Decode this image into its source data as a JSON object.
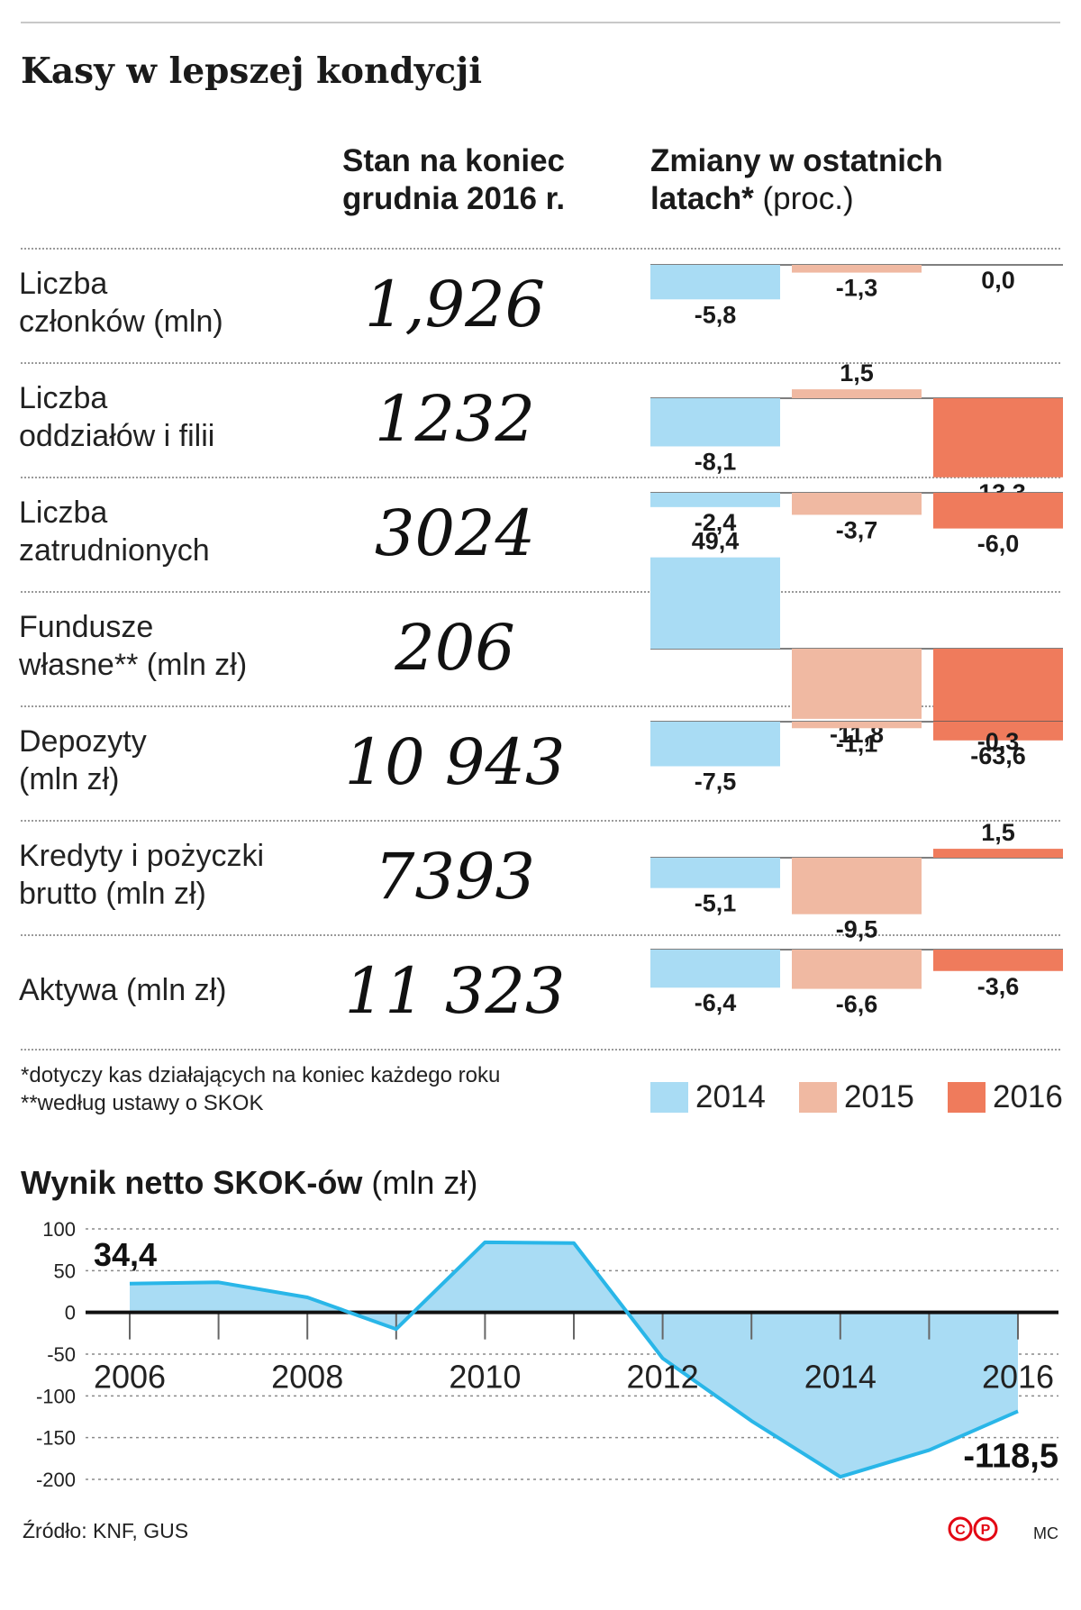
{
  "title": "Kasy w lepszej kondycji",
  "header": {
    "col1_line1": "Stan na koniec",
    "col1_line2": "grudnia 2016 r.",
    "col2_line1": "Zmiany w ostatnich",
    "col2_line2_bold": "latach*",
    "col2_line2_normal": " (proc.)"
  },
  "rows": [
    {
      "label1": "Liczba",
      "label2": "członków (mln)",
      "value": "1,926",
      "changes": [
        -5.8,
        -1.3,
        0.0
      ],
      "labels": [
        "-5,8",
        "-1,3",
        "0,0"
      ]
    },
    {
      "label1": "Liczba",
      "label2": "oddziałów i filii",
      "value": "1232",
      "changes": [
        -8.1,
        1.5,
        -13.3
      ],
      "labels": [
        "-8,1",
        "1,5",
        "-13,3"
      ]
    },
    {
      "label1": "Liczba",
      "label2": "zatrudnionych",
      "value": "3024",
      "changes": [
        -2.4,
        -3.7,
        -6.0
      ],
      "labels": [
        "-2,4",
        "-3,7",
        "-6,0"
      ]
    },
    {
      "label1": "Fundusze",
      "label2": "własne**  (mln zł)",
      "value": "206",
      "changes": [
        49.4,
        -11.8,
        -63.6
      ],
      "labels": [
        "49,4",
        "-11,8",
        "-63,6"
      ]
    },
    {
      "label1": "Depozyty",
      "label2": "(mln zł)",
      "value": "10 943",
      "changes": [
        -7.5,
        -1.1,
        -0.3
      ],
      "labels": [
        "-7,5",
        "-1,1",
        "-0,3"
      ]
    },
    {
      "label1": "Kredyty i pożyczki",
      "label2": "brutto (mln zł)",
      "value": "7393",
      "changes": [
        -5.1,
        -9.5,
        1.5
      ],
      "labels": [
        "-5,1",
        "-9,5",
        "1,5"
      ]
    },
    {
      "label1": "Aktywa (mln zł)",
      "label2": "",
      "value": "11 323",
      "changes": [
        -6.4,
        -6.6,
        -3.6
      ],
      "labels": [
        "-6,4",
        "-6,6",
        "-3,6"
      ]
    }
  ],
  "footnotes": {
    "note1": "*dotyczy kas działających na koniec każdego roku",
    "note2": "**według ustawy o SKOK"
  },
  "legend": [
    {
      "label": "2014",
      "color": "#a9dcf4"
    },
    {
      "label": "2015",
      "color": "#f0b9a2"
    },
    {
      "label": "2016",
      "color": "#ef7b5c"
    }
  ],
  "chart_data": [
    {
      "type": "bar",
      "title": "Zmiany w ostatnich latach* (proc.)",
      "categories": [
        "Liczba członków (mln)",
        "Liczba oddziałów i filii",
        "Liczba zatrudnionych",
        "Fundusze własne** (mln zł)",
        "Depozyty (mln zł)",
        "Kredyty i pożyczki brutto (mln zł)",
        "Aktywa (mln zł)"
      ],
      "series": [
        {
          "name": "2014",
          "values": [
            -5.8,
            -8.1,
            -2.4,
            49.4,
            -7.5,
            -5.1,
            -6.4
          ]
        },
        {
          "name": "2015",
          "values": [
            -1.3,
            1.5,
            -3.7,
            -11.8,
            -1.1,
            -9.5,
            -6.6
          ]
        },
        {
          "name": "2016",
          "values": [
            0.0,
            -13.3,
            -6.0,
            -63.6,
            -0.3,
            1.5,
            -3.6
          ]
        }
      ]
    },
    {
      "type": "area",
      "title": "Wynik netto SKOK-ów",
      "ylabel": "(mln zł)",
      "x": [
        2006,
        2007,
        2008,
        2009,
        2010,
        2011,
        2012,
        2013,
        2014,
        2015,
        2016
      ],
      "values": [
        34.4,
        36,
        18,
        -20,
        84,
        83,
        -55,
        -130,
        -197,
        -165,
        -118.5
      ],
      "ylim": [
        -200,
        100
      ],
      "yticks": [
        "100",
        "50",
        "0",
        "-50",
        "-100",
        "-150",
        "-200"
      ],
      "xtick_labels": [
        "2006",
        "2008",
        "2010",
        "2012",
        "2014",
        "2016"
      ],
      "first_label": "34,4",
      "last_label": "-118,5",
      "fill_color": "#a9dcf4",
      "line_color": "#29b6e8"
    }
  ],
  "line_section": {
    "title_bold": "Wynik netto SKOK-ów",
    "title_normal": " (mln zł)"
  },
  "source": "Źródło: KNF, GUS",
  "logo_text": "©℗",
  "author": "MC"
}
